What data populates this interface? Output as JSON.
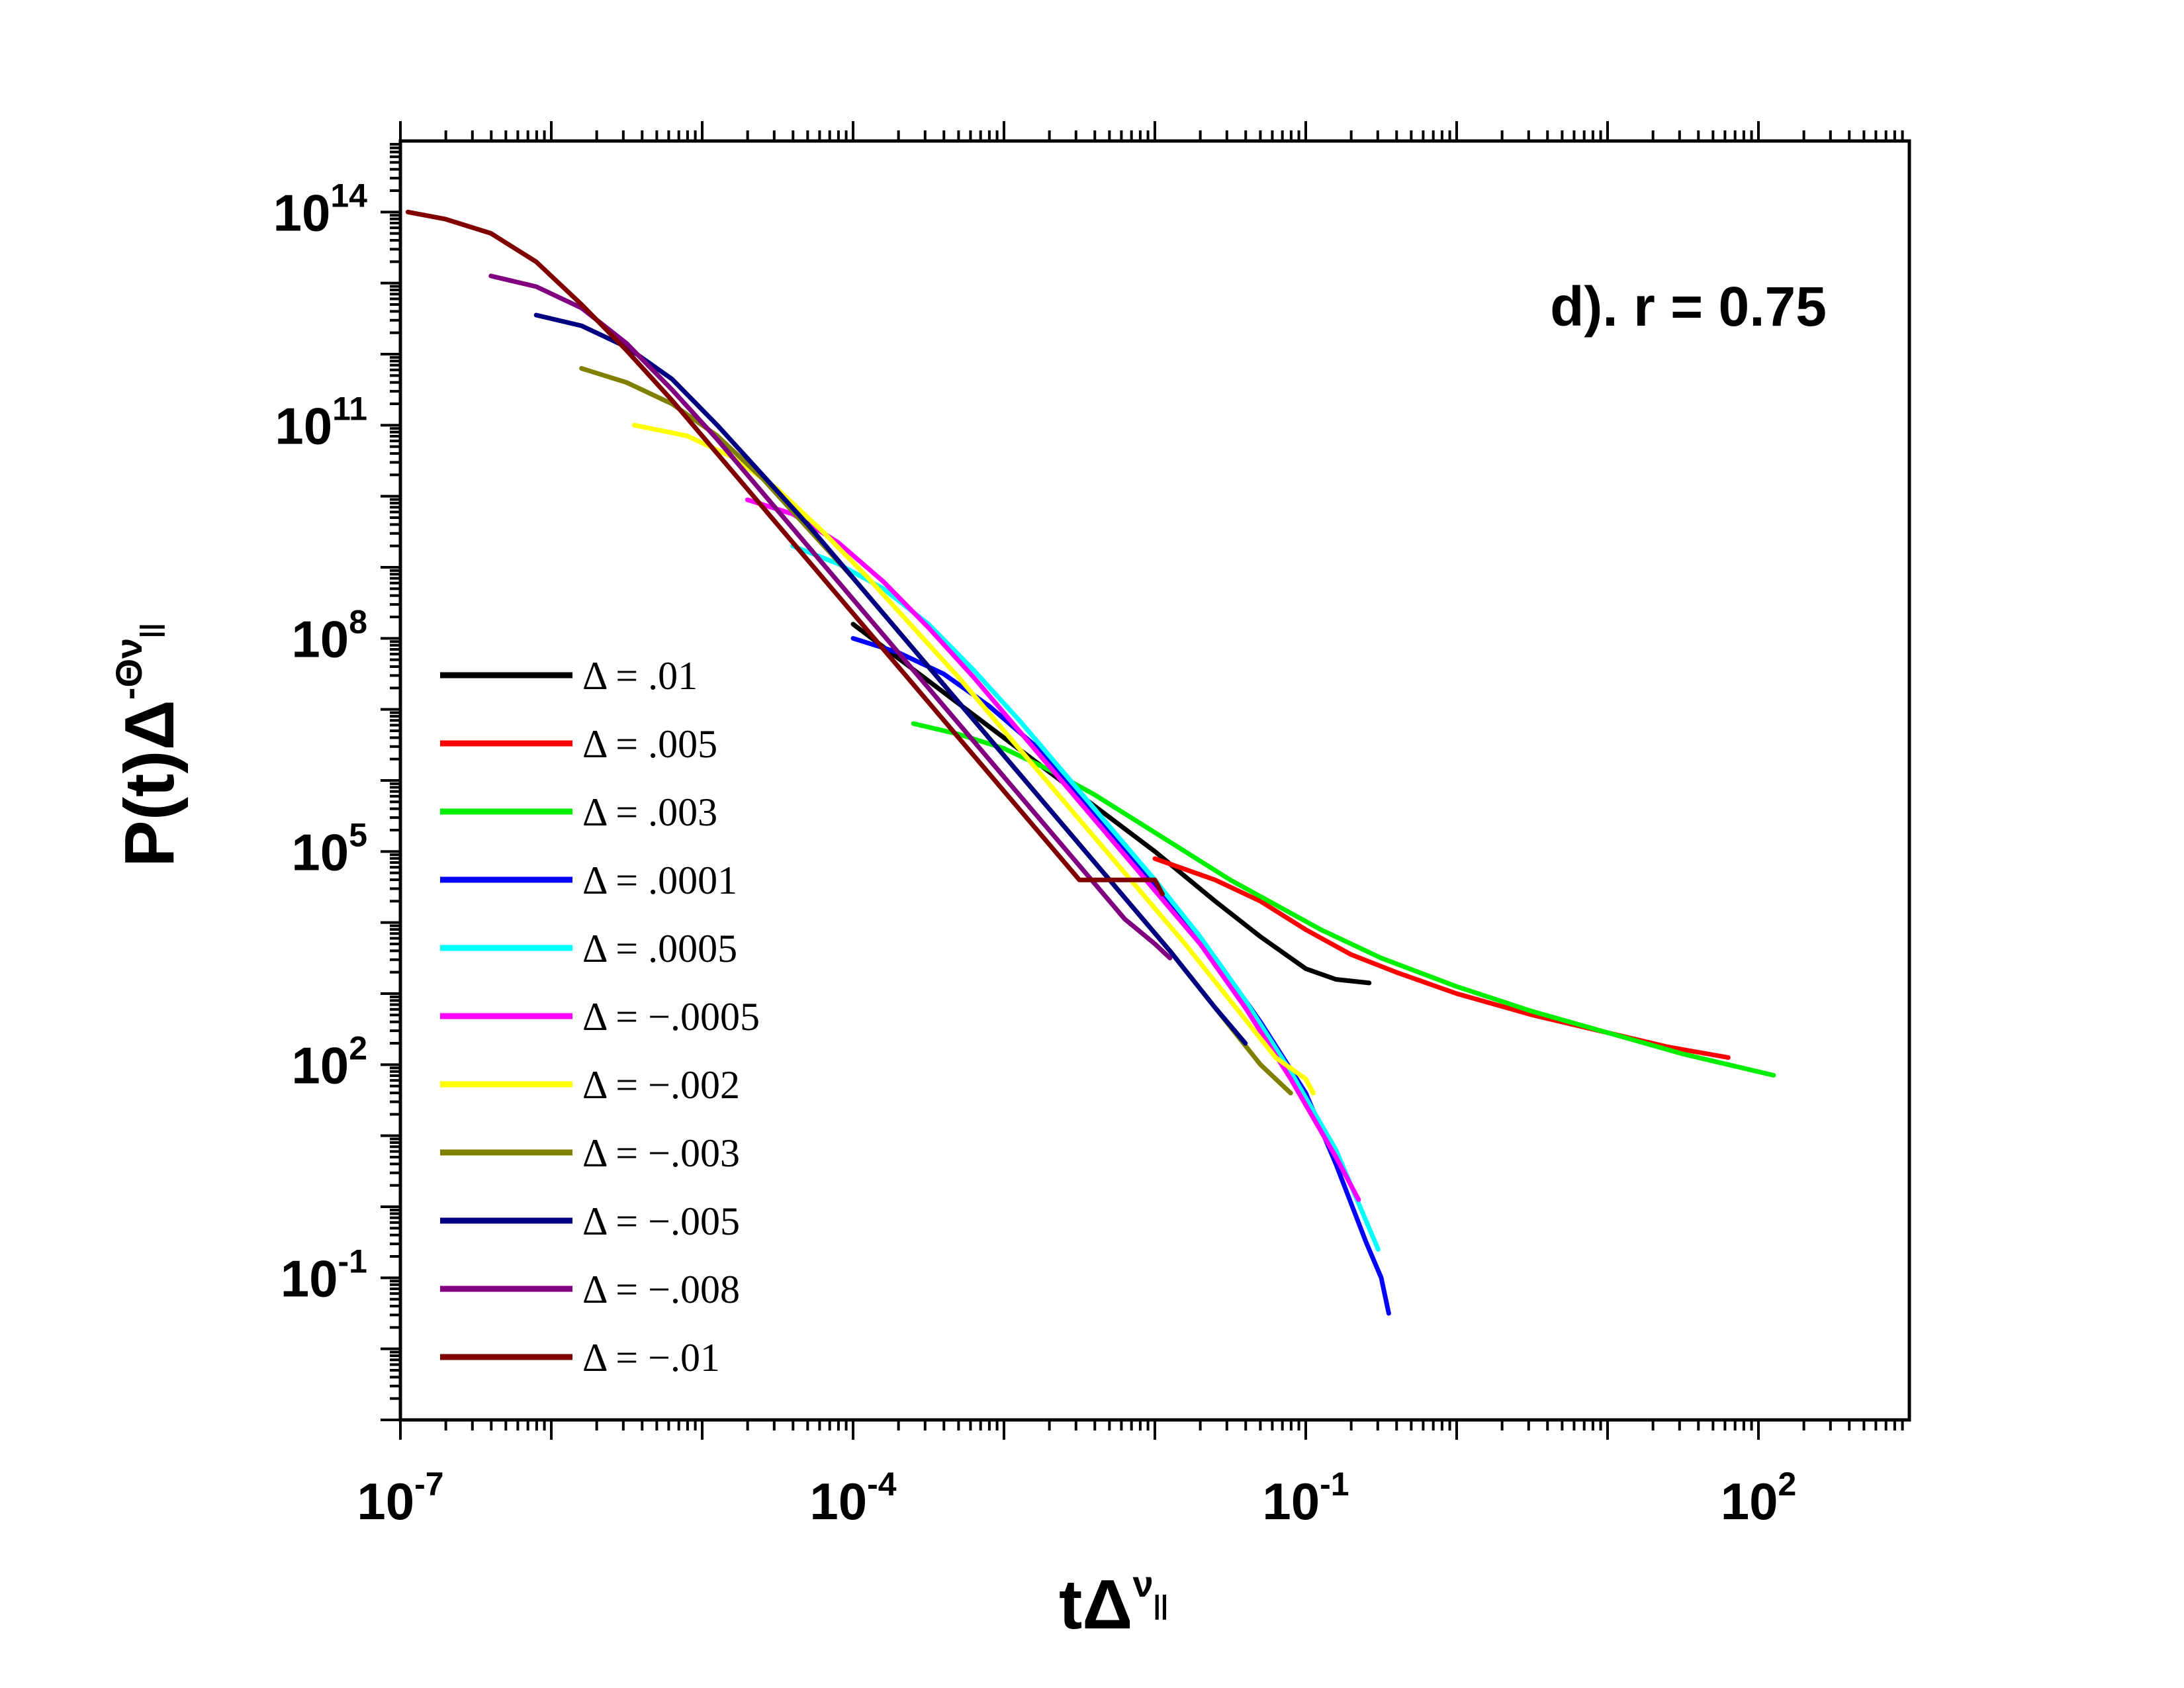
{
  "chart_data": {
    "type": "line",
    "annotation": "d). r = 0.75",
    "xlabel": {
      "base": "tΔ",
      "sup": "ν",
      "sub": "||"
    },
    "ylabel": {
      "base": "P(t)Δ",
      "sup": "-Θν",
      "sub": "||"
    },
    "x_scale": "log",
    "y_scale": "log",
    "xlim_exp": [
      -7,
      3
    ],
    "ylim_exp": [
      -3,
      15
    ],
    "x_ticks": [
      {
        "base": "10",
        "exp": "-7",
        "value_exp": -7
      },
      {
        "base": "10",
        "exp": "-4",
        "value_exp": -4
      },
      {
        "base": "10",
        "exp": "-1",
        "value_exp": -1
      },
      {
        "base": "10",
        "exp": "2",
        "value_exp": 2
      }
    ],
    "y_ticks": [
      {
        "base": "10",
        "exp": "14",
        "value_exp": 14
      },
      {
        "base": "10",
        "exp": "11",
        "value_exp": 11
      },
      {
        "base": "10",
        "exp": "8",
        "value_exp": 8
      },
      {
        "base": "10",
        "exp": "5",
        "value_exp": 5
      },
      {
        "base": "10",
        "exp": "2",
        "value_exp": 2
      },
      {
        "base": "10",
        "exp": "-1",
        "value_exp": -1
      }
    ],
    "legend_position": "left",
    "series": [
      {
        "name": "Δ = .01",
        "color": "#000000",
        "log_x": [
          -4.0,
          -3.5,
          -3.0,
          -2.5,
          -2.0,
          -1.6,
          -1.3,
          -1.0,
          -0.8,
          -0.58
        ],
        "log_y": [
          8.2,
          7.4,
          6.6,
          5.8,
          5.0,
          4.3,
          3.8,
          3.35,
          3.2,
          3.15
        ]
      },
      {
        "name": "Δ = .005",
        "color": "#ff0000",
        "log_x": [
          -2.0,
          -1.6,
          -1.3,
          -1.0,
          -0.7,
          -0.4,
          0,
          0.5,
          1.0,
          1.4,
          1.8
        ],
        "log_y": [
          4.9,
          4.6,
          4.3,
          3.9,
          3.55,
          3.3,
          3.0,
          2.7,
          2.45,
          2.25,
          2.1
        ]
      },
      {
        "name": "Δ = .003",
        "color": "#00ee00",
        "log_x": [
          -3.6,
          -3.3,
          -3.0,
          -2.7,
          -2.4,
          -2.1,
          -1.8,
          -1.5,
          -1.2,
          -0.9,
          -0.5,
          0,
          0.5,
          1.0,
          1.5,
          2.1
        ],
        "log_y": [
          6.8,
          6.65,
          6.45,
          6.15,
          5.8,
          5.4,
          5.0,
          4.6,
          4.25,
          3.9,
          3.5,
          3.1,
          2.75,
          2.45,
          2.15,
          1.85
        ]
      },
      {
        "name": "Δ = .0001",
        "color": "#0000ff",
        "log_x": [
          -4.0,
          -3.7,
          -3.4,
          -3.1,
          -2.8,
          -2.5,
          -2.2,
          -1.9,
          -1.6,
          -1.3,
          -1.0,
          -0.8,
          -0.6,
          -0.5,
          -0.45
        ],
        "log_y": [
          8.0,
          7.8,
          7.5,
          7.05,
          6.5,
          5.8,
          5.05,
          4.3,
          3.5,
          2.6,
          1.6,
          0.6,
          -0.5,
          -1.0,
          -1.5
        ]
      },
      {
        "name": "Δ = .0005",
        "color": "#00ffff",
        "log_x": [
          -4.4,
          -4.1,
          -3.8,
          -3.5,
          -3.2,
          -2.9,
          -2.6,
          -2.3,
          -2.0,
          -1.7,
          -1.4,
          -1.1,
          -0.8,
          -0.6,
          -0.52
        ],
        "log_y": [
          9.3,
          9.05,
          8.7,
          8.2,
          7.55,
          6.85,
          6.1,
          5.35,
          4.6,
          3.8,
          2.9,
          1.9,
          0.8,
          -0.2,
          -0.6
        ]
      },
      {
        "name": "Δ = −.0005",
        "color": "#ff00ff",
        "log_x": [
          -4.7,
          -4.4,
          -4.1,
          -3.8,
          -3.5,
          -3.2,
          -2.9,
          -2.6,
          -2.3,
          -2.0,
          -1.7,
          -1.4,
          -1.1,
          -0.8,
          -0.65
        ],
        "log_y": [
          9.95,
          9.75,
          9.35,
          8.8,
          8.15,
          7.45,
          6.7,
          5.95,
          5.2,
          4.45,
          3.7,
          2.8,
          1.8,
          0.7,
          0.1
        ]
      },
      {
        "name": "Δ = −.002",
        "color": "#ffff00",
        "log_x": [
          -5.45,
          -5.1,
          -4.8,
          -4.5,
          -4.2,
          -3.9,
          -3.6,
          -3.3,
          -3.0,
          -2.7,
          -2.4,
          -2.1,
          -1.8,
          -1.5,
          -1.2,
          -1.0,
          -0.95
        ],
        "log_y": [
          11.0,
          10.85,
          10.55,
          10.1,
          9.5,
          8.85,
          8.15,
          7.45,
          6.7,
          5.95,
          5.2,
          4.45,
          3.7,
          2.9,
          2.1,
          1.8,
          1.6
        ]
      },
      {
        "name": "Δ = −.003",
        "color": "#808000",
        "log_x": [
          -5.8,
          -5.5,
          -5.2,
          -4.9,
          -4.6,
          -4.3,
          -4.0,
          -3.7,
          -3.4,
          -3.1,
          -2.8,
          -2.5,
          -2.2,
          -1.9,
          -1.6,
          -1.3,
          -1.1
        ],
        "log_y": [
          11.8,
          11.6,
          11.3,
          10.85,
          10.25,
          9.55,
          8.85,
          8.1,
          7.35,
          6.6,
          5.85,
          5.1,
          4.35,
          3.6,
          2.8,
          2.0,
          1.6
        ]
      },
      {
        "name": "Δ = −.005",
        "color": "#000080",
        "log_x": [
          -6.1,
          -5.8,
          -5.5,
          -5.2,
          -4.9,
          -4.6,
          -4.3,
          -4.0,
          -3.7,
          -3.4,
          -3.1,
          -2.8,
          -2.5,
          -2.2,
          -1.9,
          -1.6,
          -1.4
        ],
        "log_y": [
          12.55,
          12.4,
          12.1,
          11.65,
          11.0,
          10.3,
          9.6,
          8.85,
          8.1,
          7.35,
          6.6,
          5.85,
          5.1,
          4.35,
          3.6,
          2.8,
          2.3
        ]
      },
      {
        "name": "Δ = −.008",
        "color": "#800080",
        "log_x": [
          -6.4,
          -6.1,
          -5.8,
          -5.5,
          -5.2,
          -4.9,
          -4.6,
          -4.3,
          -4.0,
          -3.7,
          -3.4,
          -3.1,
          -2.8,
          -2.5,
          -2.2,
          -2.0,
          -1.9
        ],
        "log_y": [
          13.1,
          12.95,
          12.65,
          12.15,
          11.5,
          10.8,
          10.05,
          9.3,
          8.55,
          7.8,
          7.05,
          6.3,
          5.55,
          4.8,
          4.05,
          3.7,
          3.5
        ]
      },
      {
        "name": "Δ = −.01",
        "color": "#800000",
        "log_x": [
          -6.95,
          -6.7,
          -6.4,
          -6.1,
          -5.8,
          -5.5,
          -5.2,
          -4.9,
          -4.6,
          -4.3,
          -4.0,
          -3.7,
          -3.4,
          -3.1,
          -2.8,
          -2.5,
          -2.2,
          -2.0,
          -1.95
        ],
        "log_y": [
          14.0,
          13.9,
          13.7,
          13.3,
          12.7,
          12.05,
          11.35,
          10.6,
          9.85,
          9.1,
          8.35,
          7.6,
          6.85,
          6.1,
          5.35,
          4.6,
          4.6,
          4.6,
          4.4
        ]
      }
    ]
  }
}
